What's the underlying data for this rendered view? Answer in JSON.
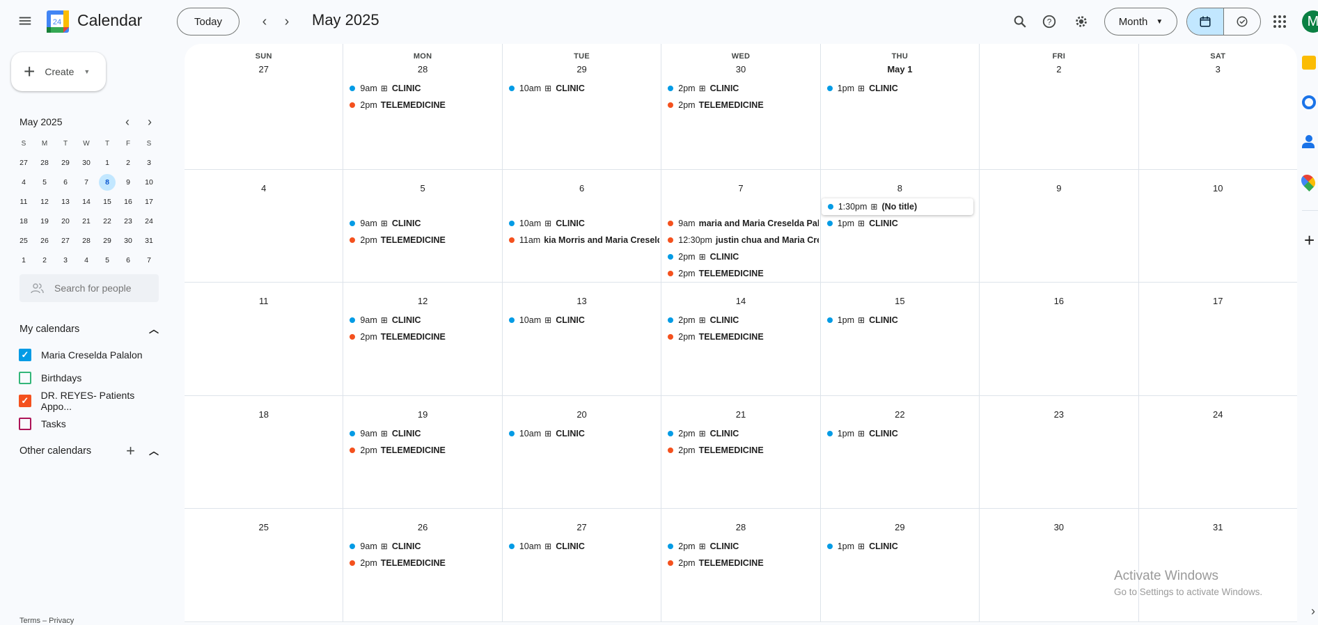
{
  "app": {
    "title": "Calendar",
    "logo_number": "24"
  },
  "header": {
    "today_label": "Today",
    "month_title": "May 2025",
    "view_label": "Month",
    "avatar_letter": "M",
    "avatar_color": "#0b8043"
  },
  "sidebar": {
    "create_label": "Create",
    "mini": {
      "title": "May 2025",
      "weekdays": [
        "S",
        "M",
        "T",
        "W",
        "T",
        "F",
        "S"
      ],
      "weeks": [
        [
          "27",
          "28",
          "29",
          "30",
          "1",
          "2",
          "3"
        ],
        [
          "4",
          "5",
          "6",
          "7",
          "8",
          "9",
          "10"
        ],
        [
          "11",
          "12",
          "13",
          "14",
          "15",
          "16",
          "17"
        ],
        [
          "18",
          "19",
          "20",
          "21",
          "22",
          "23",
          "24"
        ],
        [
          "25",
          "26",
          "27",
          "28",
          "29",
          "30",
          "31"
        ],
        [
          "1",
          "2",
          "3",
          "4",
          "5",
          "6",
          "7"
        ]
      ],
      "today": "8"
    },
    "search_placeholder": "Search for people",
    "my_calendars_label": "My calendars",
    "calendars": [
      {
        "name": "Maria Creselda Palalon",
        "color": "#039be5",
        "checked": true
      },
      {
        "name": "Birthdays",
        "color": "#33b679",
        "checked": false
      },
      {
        "name": "DR. REYES- Patients Appo...",
        "color": "#f4511e",
        "checked": true
      },
      {
        "name": "Tasks",
        "color": "#ad1457",
        "checked": false
      }
    ],
    "other_calendars_label": "Other calendars",
    "footer": "Terms – Privacy"
  },
  "colors": {
    "blue": "#039be5",
    "orange": "#f4511e",
    "accent": "#0b57d0",
    "selected_bg": "#c2e7ff"
  },
  "grid": {
    "day_names": [
      "SUN",
      "MON",
      "TUE",
      "WED",
      "THU",
      "FRI",
      "SAT"
    ],
    "weeks": [
      [
        {
          "d": "27",
          "ev": []
        },
        {
          "d": "28",
          "ev": [
            {
              "t": "9am",
              "g": true,
              "n": "CLINIC",
              "c": "blue"
            },
            {
              "t": "2pm",
              "n": "TELEMEDICINE",
              "c": "orange"
            }
          ]
        },
        {
          "d": "29",
          "ev": [
            {
              "t": "10am",
              "g": true,
              "n": "CLINIC",
              "c": "blue"
            }
          ]
        },
        {
          "d": "30",
          "ev": [
            {
              "t": "2pm",
              "g": true,
              "n": "CLINIC",
              "c": "blue"
            },
            {
              "t": "2pm",
              "n": "TELEMEDICINE",
              "c": "orange"
            }
          ]
        },
        {
          "d": "May 1",
          "bold": true,
          "ev": [
            {
              "t": "1pm",
              "g": true,
              "n": "CLINIC",
              "c": "blue"
            }
          ]
        },
        {
          "d": "2",
          "ev": []
        },
        {
          "d": "3",
          "ev": []
        }
      ],
      [
        {
          "d": "4",
          "ev": []
        },
        {
          "d": "5",
          "ev": [
            {
              "t": "9am",
              "g": true,
              "n": "CLINIC",
              "c": "blue"
            },
            {
              "t": "2pm",
              "n": "TELEMEDICINE",
              "c": "orange"
            }
          ]
        },
        {
          "d": "6",
          "ev": [
            {
              "t": "10am",
              "g": true,
              "n": "CLINIC",
              "c": "blue"
            },
            {
              "t": "11am",
              "n": "kia Morris and Maria Creselda",
              "c": "orange"
            }
          ]
        },
        {
          "d": "7",
          "ev": [
            {
              "t": "9am",
              "n": "maria and Maria Creselda Pala",
              "c": "orange"
            },
            {
              "t": "12:30pm",
              "n": "justin chua and Maria Cres",
              "c": "orange"
            },
            {
              "t": "2pm",
              "g": true,
              "n": "CLINIC",
              "c": "blue"
            },
            {
              "t": "2pm",
              "n": "TELEMEDICINE",
              "c": "orange"
            }
          ]
        },
        {
          "d": "8",
          "ev": [
            {
              "t": "1:30pm",
              "g": true,
              "n": "(No title)",
              "c": "blue",
              "hover": true
            },
            {
              "t": "1pm",
              "g": true,
              "n": "CLINIC",
              "c": "blue"
            }
          ]
        },
        {
          "d": "9",
          "ev": []
        },
        {
          "d": "10",
          "ev": []
        }
      ],
      [
        {
          "d": "11",
          "ev": []
        },
        {
          "d": "12",
          "ev": [
            {
              "t": "9am",
              "g": true,
              "n": "CLINIC",
              "c": "blue"
            },
            {
              "t": "2pm",
              "n": "TELEMEDICINE",
              "c": "orange"
            }
          ]
        },
        {
          "d": "13",
          "ev": [
            {
              "t": "10am",
              "g": true,
              "n": "CLINIC",
              "c": "blue"
            }
          ]
        },
        {
          "d": "14",
          "ev": [
            {
              "t": "2pm",
              "g": true,
              "n": "CLINIC",
              "c": "blue"
            },
            {
              "t": "2pm",
              "n": "TELEMEDICINE",
              "c": "orange"
            }
          ]
        },
        {
          "d": "15",
          "ev": [
            {
              "t": "1pm",
              "g": true,
              "n": "CLINIC",
              "c": "blue"
            }
          ]
        },
        {
          "d": "16",
          "ev": []
        },
        {
          "d": "17",
          "ev": []
        }
      ],
      [
        {
          "d": "18",
          "ev": []
        },
        {
          "d": "19",
          "ev": [
            {
              "t": "9am",
              "g": true,
              "n": "CLINIC",
              "c": "blue"
            },
            {
              "t": "2pm",
              "n": "TELEMEDICINE",
              "c": "orange"
            }
          ]
        },
        {
          "d": "20",
          "ev": [
            {
              "t": "10am",
              "g": true,
              "n": "CLINIC",
              "c": "blue"
            }
          ]
        },
        {
          "d": "21",
          "ev": [
            {
              "t": "2pm",
              "g": true,
              "n": "CLINIC",
              "c": "blue"
            },
            {
              "t": "2pm",
              "n": "TELEMEDICINE",
              "c": "orange"
            }
          ]
        },
        {
          "d": "22",
          "ev": [
            {
              "t": "1pm",
              "g": true,
              "n": "CLINIC",
              "c": "blue"
            }
          ]
        },
        {
          "d": "23",
          "ev": []
        },
        {
          "d": "24",
          "ev": []
        }
      ],
      [
        {
          "d": "25",
          "ev": []
        },
        {
          "d": "26",
          "ev": [
            {
              "t": "9am",
              "g": true,
              "n": "CLINIC",
              "c": "blue"
            },
            {
              "t": "2pm",
              "n": "TELEMEDICINE",
              "c": "orange"
            }
          ]
        },
        {
          "d": "27",
          "ev": [
            {
              "t": "10am",
              "g": true,
              "n": "CLINIC",
              "c": "blue"
            }
          ]
        },
        {
          "d": "28",
          "ev": [
            {
              "t": "2pm",
              "g": true,
              "n": "CLINIC",
              "c": "blue"
            },
            {
              "t": "2pm",
              "n": "TELEMEDICINE",
              "c": "orange"
            }
          ]
        },
        {
          "d": "29",
          "ev": [
            {
              "t": "1pm",
              "g": true,
              "n": "CLINIC",
              "c": "blue"
            }
          ]
        },
        {
          "d": "30",
          "ev": []
        },
        {
          "d": "31",
          "ev": []
        }
      ]
    ]
  },
  "grid_glyph": "⊞",
  "watermark": {
    "title": "Activate Windows",
    "subtitle": "Go to Settings to activate Windows."
  }
}
